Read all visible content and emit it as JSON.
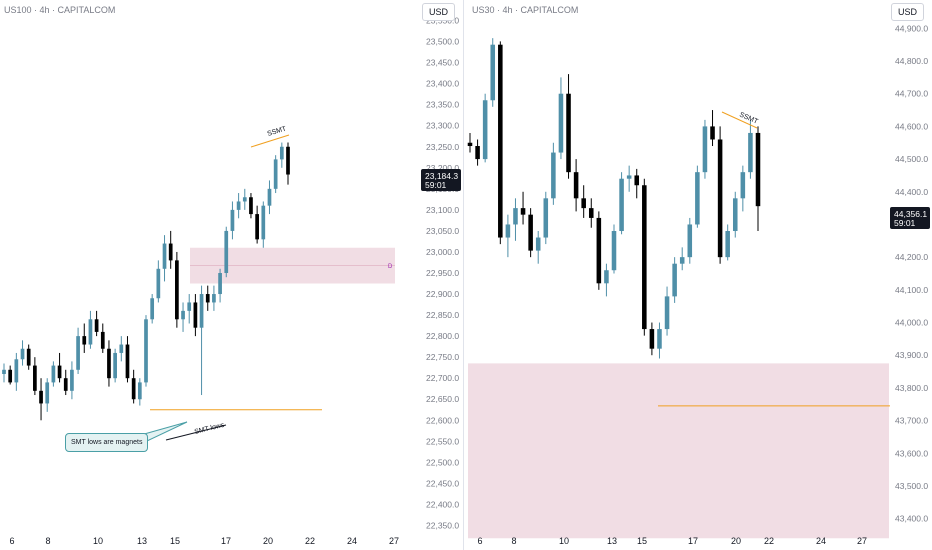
{
  "left": {
    "title": "US100 · 4h · CAPITALCOM",
    "currency": "USD",
    "price_tag": "23,184.3",
    "countdown": "59:01",
    "y_ticks": [
      "23,550.0",
      "23,500.0",
      "23,450.0",
      "23,400.0",
      "23,350.0",
      "23,300.0",
      "23,250.0",
      "23,200.0",
      "23,150.0",
      "23,100.0",
      "23,050.0",
      "23,000.0",
      "22,950.0",
      "22,900.0",
      "22,850.0",
      "22,800.0",
      "22,750.0",
      "22,700.0",
      "22,650.0",
      "22,600.0",
      "22,550.0",
      "22,500.0",
      "22,450.0",
      "22,400.0",
      "22,350.0"
    ],
    "x_ticks": [
      "6",
      "8",
      "10",
      "13",
      "15",
      "17",
      "20",
      "22",
      "24",
      "27"
    ],
    "labels": {
      "ssmt": "SSMT",
      "smt_lows": "SMT lows",
      "callout": "SMT lows are magnets",
      "zone_marker": "D"
    },
    "zone": {
      "low": 22925,
      "high": 23010
    },
    "level": 22625
  },
  "right": {
    "title": "US30 · 4h · CAPITALCOM",
    "currency": "USD",
    "price_tag": "44,356.1",
    "countdown": "59:01",
    "y_ticks": [
      "44,900.0",
      "44,800.0",
      "44,700.0",
      "44,600.0",
      "44,500.0",
      "44,400.0",
      "44,300.0",
      "44,200.0",
      "44,100.0",
      "44,000.0",
      "43,900.0",
      "43,800.0",
      "43,700.0",
      "43,600.0",
      "43,500.0",
      "43,400.0"
    ],
    "x_ticks": [
      "6",
      "8",
      "10",
      "13",
      "15",
      "17",
      "20",
      "22",
      "24",
      "27"
    ],
    "labels": {
      "ssmt": "SSMT"
    },
    "zone": {
      "low": 43340,
      "high": 43875
    },
    "level": 43745
  },
  "colors": {
    "bull": "#4f8fa8",
    "bear": "#000000",
    "zone": "#f1dde4",
    "level": "#f0a020",
    "accent": "#2962ff"
  },
  "chart_data": [
    {
      "type": "candlestick",
      "title": "US100 · 4h · CAPITALCOM",
      "ylim": [
        22325,
        23575
      ],
      "x_categories": [
        "6",
        "8",
        "10",
        "13",
        "15",
        "17",
        "20",
        "22",
        "24",
        "27"
      ],
      "series": [
        {
          "ohlc": [
            [
              22710,
              22735,
              22690,
              22720
            ],
            [
              22720,
              22730,
              22685,
              22690
            ],
            [
              22690,
              22760,
              22670,
              22745
            ],
            [
              22745,
              22790,
              22730,
              22770
            ],
            [
              22770,
              22780,
              22720,
              22730
            ],
            [
              22730,
              22750,
              22660,
              22670
            ],
            [
              22670,
              22700,
              22600,
              22640
            ],
            [
              22640,
              22700,
              22620,
              22690
            ],
            [
              22690,
              22740,
              22680,
              22730
            ],
            [
              22730,
              22760,
              22690,
              22700
            ],
            [
              22700,
              22720,
              22660,
              22670
            ],
            [
              22670,
              22740,
              22650,
              22720
            ],
            [
              22720,
              22820,
              22710,
              22800
            ],
            [
              22800,
              22830,
              22760,
              22780
            ],
            [
              22780,
              22860,
              22770,
              22840
            ],
            [
              22840,
              22860,
              22800,
              22810
            ],
            [
              22810,
              22830,
              22760,
              22770
            ],
            [
              22770,
              22790,
              22680,
              22700
            ],
            [
              22700,
              22770,
              22690,
              22760
            ],
            [
              22760,
              22800,
              22740,
              22780
            ],
            [
              22780,
              22800,
              22690,
              22700
            ],
            [
              22700,
              22720,
              22640,
              22650
            ],
            [
              22650,
              22700,
              22635,
              22690
            ],
            [
              22690,
              22850,
              22680,
              22840
            ],
            [
              22840,
              22900,
              22830,
              22890
            ],
            [
              22890,
              22980,
              22880,
              22960
            ],
            [
              22960,
              23040,
              22930,
              23020
            ],
            [
              23020,
              23050,
              22960,
              22980
            ],
            [
              22980,
              23000,
              22820,
              22840
            ],
            [
              22840,
              22880,
              22810,
              22860
            ],
            [
              22860,
              22900,
              22830,
              22880
            ],
            [
              22880,
              22900,
              22800,
              22820
            ],
            [
              22820,
              22920,
              22660,
              22900
            ],
            [
              22900,
              22920,
              22860,
              22880
            ],
            [
              22880,
              22920,
              22860,
              22900
            ],
            [
              22900,
              22960,
              22880,
              22950
            ],
            [
              22950,
              23060,
              22940,
              23050
            ],
            [
              23050,
              23120,
              23030,
              23100
            ],
            [
              23100,
              23140,
              23080,
              23120
            ],
            [
              23120,
              23150,
              23100,
              23130
            ],
            [
              23130,
              23140,
              23080,
              23090
            ],
            [
              23090,
              23110,
              23020,
              23030
            ],
            [
              23030,
              23120,
              23010,
              23110
            ],
            [
              23110,
              23170,
              23090,
              23150
            ],
            [
              23150,
              23230,
              23140,
              23220
            ],
            [
              23220,
              23260,
              23200,
              23250
            ],
            [
              23250,
              23260,
              23160,
              23184
            ]
          ]
        }
      ],
      "zones": [
        {
          "low": 22925,
          "high": 23010
        }
      ],
      "levels": [
        22625
      ]
    },
    {
      "type": "candlestick",
      "title": "US30 · 4h · CAPITALCOM",
      "ylim": [
        43350,
        44950
      ],
      "x_categories": [
        "6",
        "8",
        "10",
        "13",
        "15",
        "17",
        "20",
        "22",
        "24",
        "27"
      ],
      "series": [
        {
          "ohlc": [
            [
              44550,
              44580,
              44520,
              44540
            ],
            [
              44540,
              44560,
              44480,
              44500
            ],
            [
              44500,
              44700,
              44490,
              44680
            ],
            [
              44680,
              44870,
              44660,
              44850
            ],
            [
              44850,
              44860,
              44240,
              44260
            ],
            [
              44260,
              44330,
              44200,
              44300
            ],
            [
              44300,
              44380,
              44250,
              44350
            ],
            [
              44350,
              44400,
              44300,
              44330
            ],
            [
              44330,
              44350,
              44200,
              44220
            ],
            [
              44220,
              44280,
              44180,
              44260
            ],
            [
              44260,
              44400,
              44240,
              44380
            ],
            [
              44380,
              44550,
              44360,
              44520
            ],
            [
              44520,
              44750,
              44500,
              44700
            ],
            [
              44700,
              44760,
              44440,
              44460
            ],
            [
              44460,
              44500,
              44340,
              44380
            ],
            [
              44380,
              44420,
              44320,
              44350
            ],
            [
              44350,
              44380,
              44290,
              44320
            ],
            [
              44320,
              44340,
              44100,
              44120
            ],
            [
              44120,
              44180,
              44080,
              44160
            ],
            [
              44160,
              44300,
              44150,
              44280
            ],
            [
              44280,
              44460,
              44270,
              44440
            ],
            [
              44440,
              44480,
              44400,
              44450
            ],
            [
              44450,
              44470,
              44380,
              44420
            ],
            [
              44420,
              44440,
              43960,
              43980
            ],
            [
              43980,
              44000,
              43900,
              43920
            ],
            [
              43920,
              44000,
              43890,
              43980
            ],
            [
              43980,
              44110,
              43960,
              44080
            ],
            [
              44080,
              44200,
              44060,
              44180
            ],
            [
              44180,
              44230,
              44160,
              44200
            ],
            [
              44200,
              44320,
              44180,
              44300
            ],
            [
              44300,
              44480,
              44290,
              44460
            ],
            [
              44460,
              44620,
              44440,
              44600
            ],
            [
              44600,
              44650,
              44540,
              44560
            ],
            [
              44560,
              44600,
              44180,
              44200
            ],
            [
              44200,
              44300,
              44190,
              44280
            ],
            [
              44280,
              44400,
              44260,
              44380
            ],
            [
              44380,
              44480,
              44340,
              44460
            ],
            [
              44460,
              44620,
              44440,
              44580
            ],
            [
              44580,
              44600,
              44280,
              44356
            ]
          ]
        }
      ],
      "zones": [
        {
          "low": 43340,
          "high": 43875
        }
      ],
      "levels": [
        43745
      ]
    }
  ]
}
